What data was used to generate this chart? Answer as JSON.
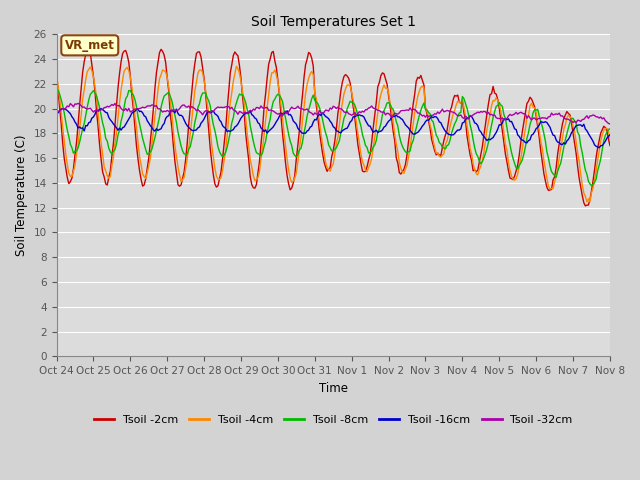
{
  "title": "Soil Temperatures Set 1",
  "xlabel": "Time",
  "ylabel": "Soil Temperature (C)",
  "ylim": [
    0,
    26
  ],
  "annotation": "VR_met",
  "fig_facecolor": "#d3d3d3",
  "plot_facecolor": "#dcdcdc",
  "series": [
    {
      "label": "Tsoil -2cm",
      "color": "#cc0000"
    },
    {
      "label": "Tsoil -4cm",
      "color": "#ff8800"
    },
    {
      "label": "Tsoil -8cm",
      "color": "#00bb00"
    },
    {
      "label": "Tsoil -16cm",
      "color": "#0000cc"
    },
    {
      "label": "Tsoil -32cm",
      "color": "#aa00aa"
    }
  ],
  "xtick_labels": [
    "Oct 24",
    "Oct 25",
    "Oct 26",
    "Oct 27",
    "Oct 28",
    "Oct 29",
    "Oct 30",
    "Oct 31",
    "Nov 1",
    "Nov 2",
    "Nov 3",
    "Nov 4",
    "Nov 5",
    "Nov 6",
    "Nov 7",
    "Nov 8"
  ],
  "grid_color": "#ffffff",
  "yticks": [
    0,
    2,
    4,
    6,
    8,
    10,
    12,
    14,
    16,
    18,
    20,
    22,
    24,
    26
  ]
}
